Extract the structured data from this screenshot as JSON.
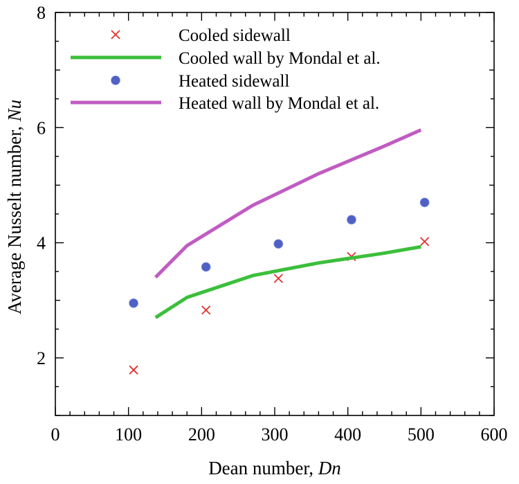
{
  "chart_data": {
    "type": "line",
    "title": "",
    "xlabel": {
      "text": "Dean number, ",
      "italic": "Dn"
    },
    "ylabel": {
      "text": "Average Nusselt number, ",
      "italic": "Nu"
    },
    "xlim": [
      0,
      600
    ],
    "ylim": [
      1,
      8
    ],
    "x_ticks": [
      0,
      100,
      200,
      300,
      400,
      500,
      600
    ],
    "x_tick_labels": [
      "0",
      "100",
      "200",
      "300",
      "400",
      "500",
      "600"
    ],
    "y_ticks": [
      2,
      4,
      6,
      8
    ],
    "y_tick_labels": [
      "2",
      "4",
      "6",
      "8"
    ],
    "grid": false,
    "legend_position": "top-left",
    "series": [
      {
        "name": "Cooled sidewall",
        "kind": "scatter",
        "marker": "x",
        "color": "#e0302a",
        "x": [
          107,
          206,
          305,
          405,
          505
        ],
        "y": [
          1.79,
          2.83,
          3.38,
          3.76,
          4.02
        ]
      },
      {
        "name": "Cooled wall by Mondal et al.",
        "kind": "line",
        "color": "#3bbf3b",
        "x": [
          137,
          180,
          270,
          360,
          450,
          500
        ],
        "y": [
          2.7,
          3.05,
          3.43,
          3.65,
          3.82,
          3.93
        ]
      },
      {
        "name": "Heated sidewall",
        "kind": "scatter",
        "marker": "filled-circle",
        "color": "#4f61c5",
        "x": [
          107,
          206,
          305,
          405,
          505
        ],
        "y": [
          2.95,
          3.58,
          3.98,
          4.4,
          4.7
        ]
      },
      {
        "name": "Heated wall by Mondal et al.",
        "kind": "line",
        "color": "#c05cc2",
        "x": [
          137,
          180,
          270,
          360,
          450,
          500
        ],
        "y": [
          3.4,
          3.95,
          4.65,
          5.2,
          5.68,
          5.96
        ]
      }
    ]
  }
}
